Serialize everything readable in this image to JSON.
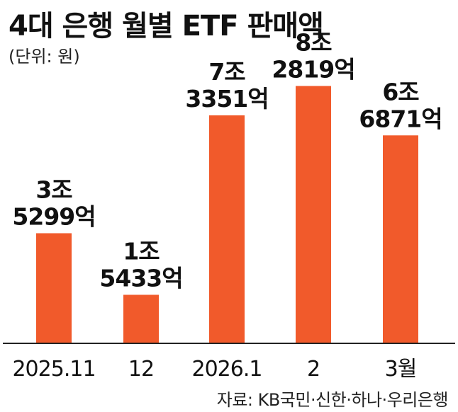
{
  "title": "4대 은행 월별 ETF 판매액",
  "unit_label": "(단위: 원)",
  "source": "자료: KB국민·신한·하나·우리은행",
  "colors": {
    "bar": "#f15a2b",
    "axis": "#222222",
    "text": "#111111"
  },
  "chart_data": {
    "type": "bar",
    "title": "4대 은행 월별 ETF 판매액",
    "xlabel": "",
    "ylabel": "원",
    "categories": [
      "2025.11",
      "12",
      "2026.1",
      "2",
      "3월"
    ],
    "values": [
      35299,
      15433,
      73351,
      82819,
      66871
    ],
    "value_unit": "억원",
    "data_labels": [
      [
        "3조",
        "5299억"
      ],
      [
        "1조",
        "5433억"
      ],
      [
        "7조",
        "3351억"
      ],
      [
        "8조",
        "2819억"
      ],
      [
        "6조",
        "6871억"
      ]
    ],
    "ylim": [
      0,
      90000
    ],
    "grid": false
  }
}
